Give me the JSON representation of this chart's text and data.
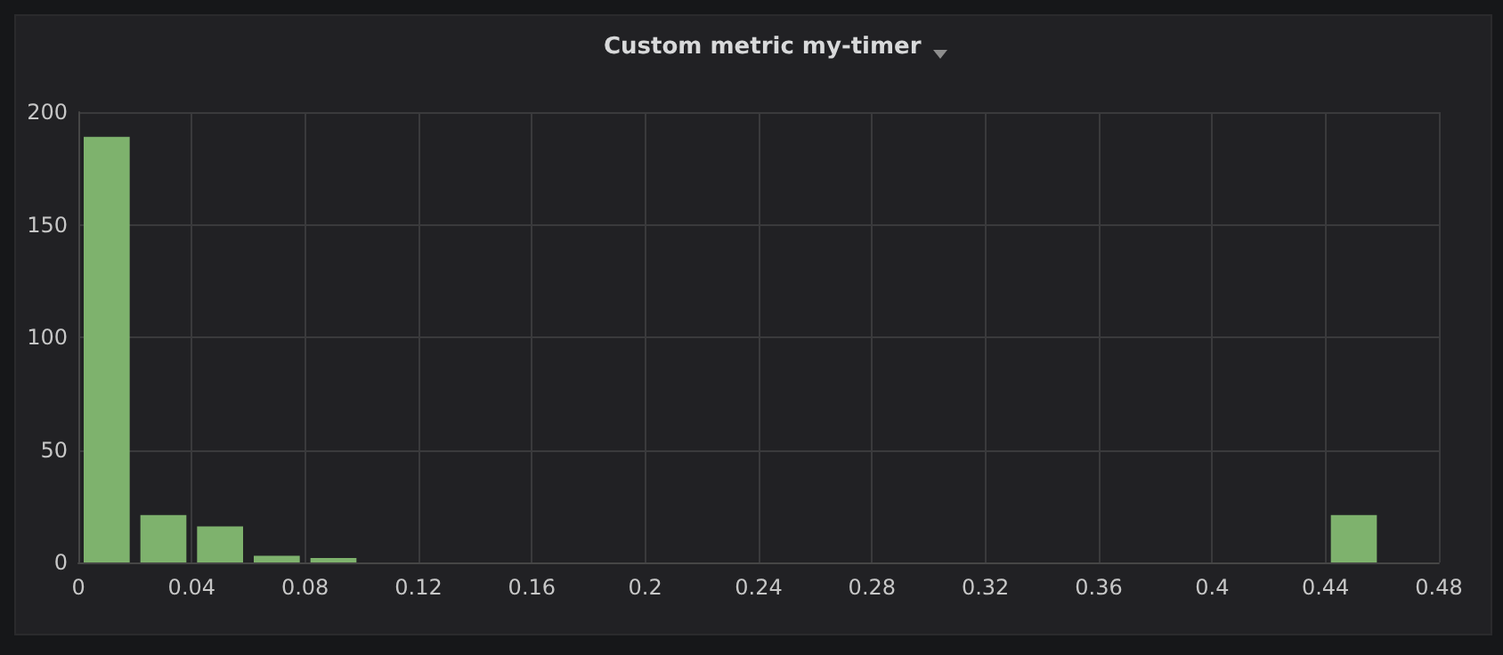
{
  "chart_data": {
    "type": "histogram",
    "title": "Custom metric my-timer",
    "bins": [
      0,
      0.02,
      0.04,
      0.06,
      0.08,
      0.1,
      0.12,
      0.14,
      0.16,
      0.18,
      0.2,
      0.22,
      0.24,
      0.26,
      0.28,
      0.3,
      0.32,
      0.34,
      0.36,
      0.38,
      0.4,
      0.42,
      0.44,
      0.46
    ],
    "values": [
      189,
      21,
      16,
      3,
      2,
      0,
      0,
      0,
      0,
      0,
      0,
      0,
      0,
      0,
      0,
      0,
      0,
      0,
      0,
      0,
      0,
      0,
      21
    ],
    "color": "#7eb26d",
    "xlim": [
      0,
      0.48
    ],
    "xticks": [
      0,
      0.04,
      0.08,
      0.12,
      0.16,
      0.2,
      0.24,
      0.28,
      0.32,
      0.36,
      0.4,
      0.44,
      0.48
    ],
    "ylim": [
      0,
      200
    ],
    "yticks": [
      0,
      50,
      100,
      150,
      200
    ],
    "grid": true
  }
}
